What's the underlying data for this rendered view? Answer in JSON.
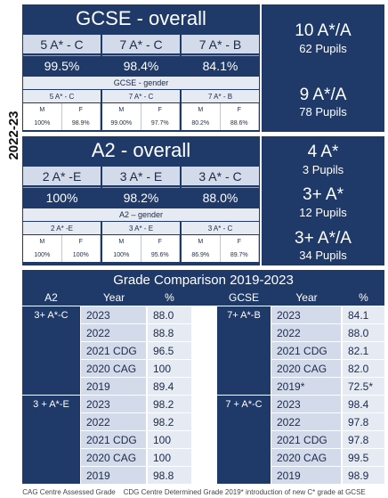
{
  "side_label": "2022-23",
  "gcse": {
    "title": "GCSE - overall",
    "headers": [
      "5 A* - C",
      "7 A* - C",
      "7 A* - B"
    ],
    "values": [
      "99.5%",
      "98.4%",
      "84.1%"
    ],
    "gender_title": "GCSE - gender",
    "gender_headers": [
      "5 A* - C",
      "7 A* - C",
      "7 A* - B"
    ],
    "gender_mf": [
      "M",
      "F",
      "M",
      "F",
      "M",
      "F"
    ],
    "gender_values": [
      "100%",
      "98.9%",
      "99.00%",
      "97.7%",
      "80.2%",
      "88.6%"
    ],
    "side": [
      {
        "main": "10 A*/A",
        "sub": "62 Pupils"
      },
      {
        "main": "9 A*/A",
        "sub": "78 Pupils"
      }
    ]
  },
  "a2": {
    "title": "A2 - overall",
    "headers": [
      "2 A* -E",
      "3 A* - E",
      "3 A* - C"
    ],
    "values": [
      "100%",
      "98.2%",
      "88.0%"
    ],
    "gender_title": "A2 – gender",
    "gender_headers": [
      "2 A* -E",
      "3 A* - E",
      "3 A* - C"
    ],
    "gender_mf": [
      "M",
      "F",
      "M",
      "F",
      "M",
      "F"
    ],
    "gender_values": [
      "100%",
      "100%",
      "100%",
      "95.6%",
      "86.9%",
      "89.7%"
    ],
    "side": [
      {
        "main": "4 A*",
        "sub": "3 Pupils"
      },
      {
        "main": "3+ A*",
        "sub": "12 Pupils"
      },
      {
        "main": "3+ A*/A",
        "sub": "34 Pupils"
      }
    ]
  },
  "comparison": {
    "title": "Grade Comparison 2019-2023",
    "left": {
      "headers": [
        "A2",
        "Year",
        "%"
      ],
      "groups": [
        {
          "label": "3+ A*-C",
          "rows": [
            [
              "2023",
              "88.0"
            ],
            [
              "2022",
              "88.8"
            ],
            [
              "2021 CDG",
              "96.5"
            ],
            [
              "2020 CAG",
              "100"
            ],
            [
              "2019",
              "89.4"
            ]
          ]
        },
        {
          "label": "3 + A*-E",
          "rows": [
            [
              "2023",
              "98.2"
            ],
            [
              "2022",
              "98.2"
            ],
            [
              "2021 CDG",
              "100"
            ],
            [
              "2020 CAG",
              "100"
            ],
            [
              "2019",
              "98.8"
            ]
          ]
        }
      ]
    },
    "right": {
      "headers": [
        "GCSE",
        "Year",
        "%"
      ],
      "groups": [
        {
          "label": "7+ A*-B",
          "rows": [
            [
              "2023",
              "84.1"
            ],
            [
              "2022",
              "88.0"
            ],
            [
              "2021 CDG",
              "82.1"
            ],
            [
              "2020 CAG",
              "82.0"
            ],
            [
              "2019*",
              "72.5*"
            ]
          ]
        },
        {
          "label": "7 + A*-C",
          "rows": [
            [
              "2023",
              "98.4"
            ],
            [
              "2022",
              "97.8"
            ],
            [
              "2021 CDG",
              "97.8"
            ],
            [
              "2020 CAG",
              "99.5"
            ],
            [
              "2019",
              "98.9"
            ]
          ]
        }
      ]
    }
  },
  "footnote": "CAG Centre Assessed Grade    CDG Centre Determined Grade 2019* introduction of new C* grade at GCSE"
}
